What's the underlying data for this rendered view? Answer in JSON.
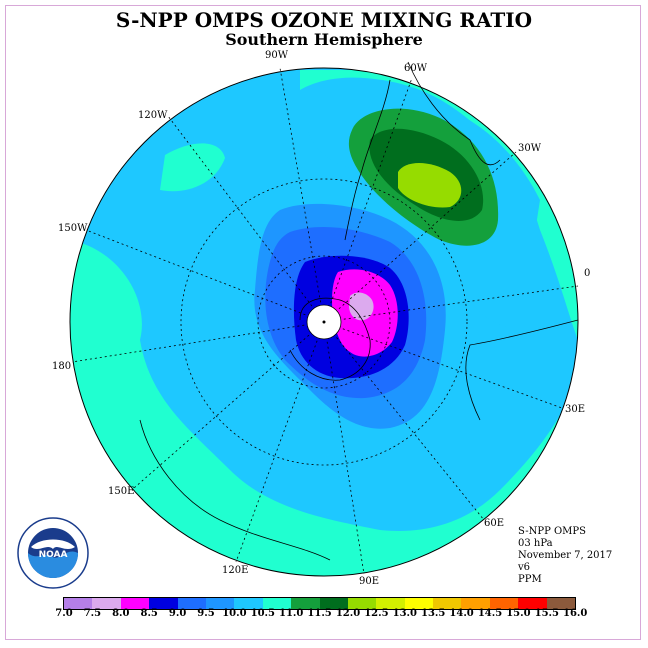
{
  "title": "S-NPP OMPS OZONE MIXING RATIO",
  "subtitle": "Southern Hemisphere",
  "longitude_labels": [
    {
      "text": "90W",
      "pos": "top"
    },
    {
      "text": "60W",
      "pos": "top-right"
    },
    {
      "text": "30W",
      "pos": "upper-right"
    },
    {
      "text": "0",
      "pos": "right"
    },
    {
      "text": "30E",
      "pos": "lower-right"
    },
    {
      "text": "60E",
      "pos": "bottom-right"
    },
    {
      "text": "90E",
      "pos": "bottom"
    },
    {
      "text": "120E",
      "pos": "bottom-left"
    },
    {
      "text": "150E",
      "pos": "lower-left"
    },
    {
      "text": "180",
      "pos": "left"
    },
    {
      "text": "150W",
      "pos": "upper-left"
    },
    {
      "text": "120W",
      "pos": "top-left"
    }
  ],
  "info": {
    "instrument": "S-NPP OMPS",
    "level": "03 hPa",
    "date": "November 7, 2017",
    "version": "v6",
    "units": "PPM"
  },
  "logo": {
    "text": "NOAA",
    "ring_text": "NATIONAL OCEANIC AND ATMOSPHERIC ADMINISTRATION · U.S. DEPARTMENT OF COMMERCE"
  },
  "colorbar": {
    "labels": [
      "7.0",
      "7.5",
      "8.0",
      "8.5",
      "9.0",
      "9.5",
      "10.0",
      "10.5",
      "11.0",
      "11.5",
      "12.0",
      "12.5",
      "13.0",
      "13.5",
      "14.0",
      "14.5",
      "15.0",
      "15.5",
      "16.0"
    ],
    "colors": [
      "#b57fe8",
      "#dcaaee",
      "#ff00ff",
      "#0000e0",
      "#1e6eff",
      "#1e96ff",
      "#1ec8ff",
      "#20ffd0",
      "#14a03c",
      "#006e1e",
      "#96dc00",
      "#d2f000",
      "#ffff00",
      "#f0c800",
      "#ffa000",
      "#ff6400",
      "#ff0000",
      "#8c5a3c"
    ]
  },
  "chart_data": {
    "type": "heatmap",
    "title": "S-NPP OMPS OZONE MIXING RATIO",
    "subtitle": "Southern Hemisphere",
    "projection": "south polar stereographic",
    "pressure_level": "03 hPa",
    "units": "PPM",
    "date": "November 7, 2017",
    "value_range": [
      7.0,
      16.0
    ],
    "features": [
      {
        "region": "polar vortex core near South Pole",
        "value_range_ppm": [
          7.5,
          8.5
        ]
      },
      {
        "region": "ring around vortex",
        "value_range_ppm": [
          8.5,
          9.5
        ]
      },
      {
        "region": "broad mid-latitude field",
        "value_range_ppm": [
          10.0,
          10.5
        ]
      },
      {
        "region": "outer belt",
        "value_range_ppm": [
          10.5,
          11.0
        ]
      },
      {
        "region": "maximum over South Atlantic / South America (~30W-60W)",
        "value_range_ppm": [
          11.0,
          12.5
        ]
      }
    ]
  }
}
